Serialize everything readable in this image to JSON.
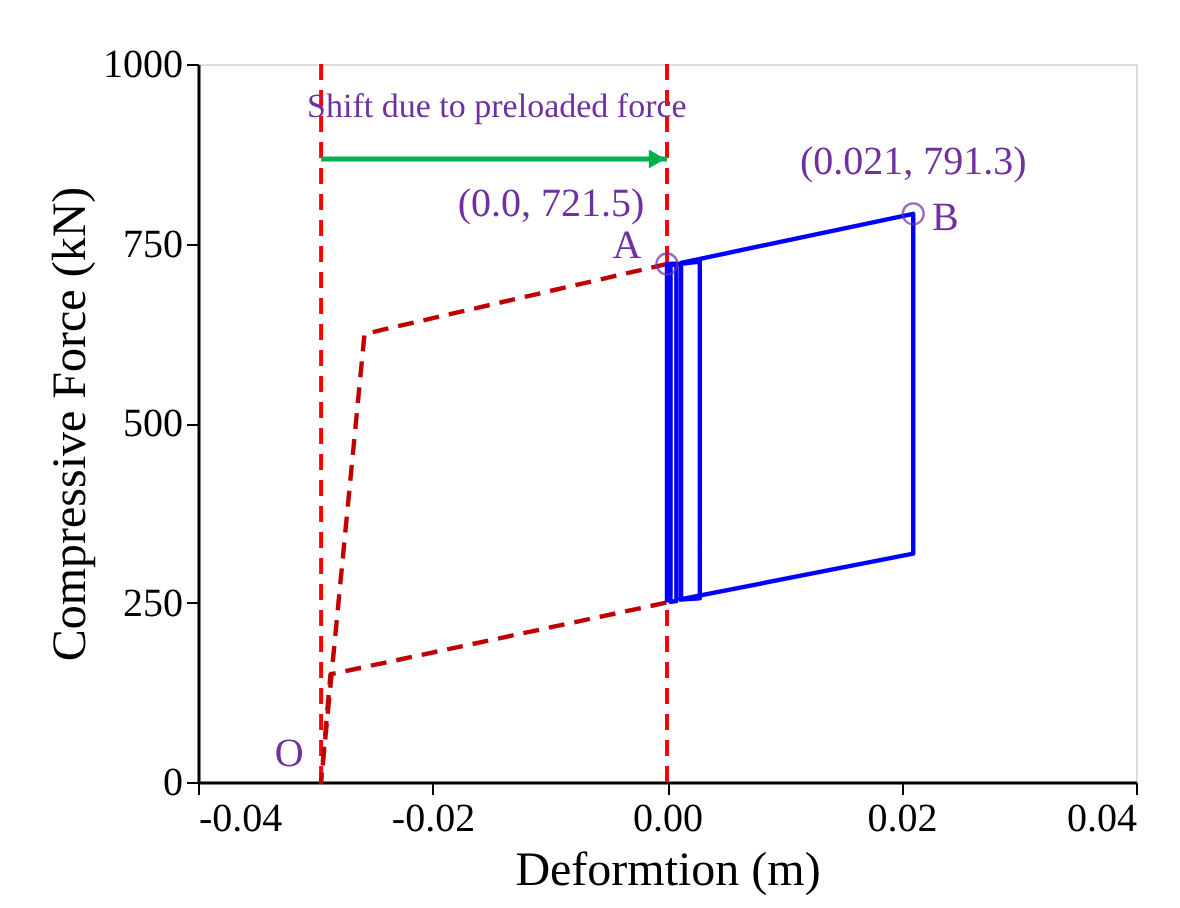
{
  "chart_data": {
    "type": "line",
    "xlabel": "Deformtion (m)",
    "ylabel": "Compressive Force (kN)",
    "xlim": [
      -0.04,
      0.04
    ],
    "xticks": [
      -0.04,
      -0.02,
      {
        "value": 0.0,
        "label": "0.00"
      },
      0.02,
      0.04
    ],
    "ylim": [
      0,
      1000
    ],
    "yticks": [
      0,
      250,
      500,
      750,
      1000
    ],
    "grid": false,
    "series": [
      {
        "color": "#c00000",
        "line_style": "dashed",
        "x": [
          0.0,
          -0.0258,
          -0.0295,
          -0.0287,
          0.0
        ],
        "values": [
          721.5,
          624,
          0,
          150,
          250
        ]
      },
      {
        "color": "#0000ff",
        "line_style": "solid",
        "x": [
          0.0,
          0.0,
          0.0008,
          0.0008,
          0.0003,
          0.0003,
          0.0028,
          0.0028,
          0.0012,
          0.0012,
          0.021,
          0.021,
          0.001
        ],
        "values": [
          250,
          721.5,
          722,
          252,
          251,
          720,
          725,
          256,
          254,
          723,
          791.3,
          318,
          254
        ]
      },
      {
        "type": "scatter",
        "color": "#7030a0",
        "marker": "circle",
        "x": [
          0.0,
          0.021
        ],
        "values": [
          721.5,
          791.3
        ]
      }
    ],
    "ref_lines": [
      {
        "axis": "x",
        "value": -0.0295,
        "color": "#ff0000",
        "line_style": "dashed"
      },
      {
        "axis": "x",
        "value": 0.0,
        "color": "#ff0000",
        "line_style": "dashed"
      }
    ],
    "annotations": [
      {
        "text": "Shift due to preloaded force",
        "x": -0.0295,
        "y": 940
      },
      {
        "text": "(0.0, 721.5)",
        "x": 0.0,
        "y": 721.5
      },
      {
        "text": "A",
        "x": 0.0,
        "y": 721.5
      },
      {
        "text": "(0.021, 791.3)",
        "x": 0.021,
        "y": 791.3
      },
      {
        "text": "B",
        "x": 0.021,
        "y": 791.3
      },
      {
        "text": "O",
        "x": -0.0295,
        "y": 0
      }
    ]
  }
}
